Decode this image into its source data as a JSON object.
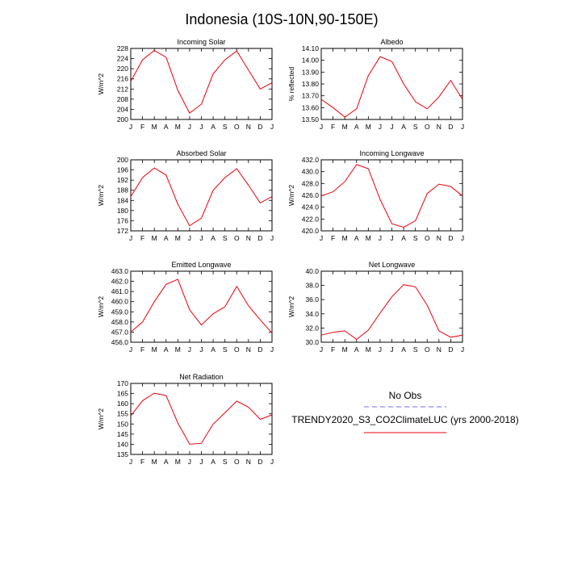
{
  "figure": {
    "title": "Indonesia (10S-10N,90-150E)"
  },
  "legend": {
    "obs_label": "No Obs",
    "obs_color": "#6b6bff",
    "model_label": "TRENDY2020_S3_CO2ClimateLUC (yrs 2000-2018)",
    "model_color": "#e8000b"
  },
  "chart_data": [
    {
      "type": "line",
      "title": "Incoming Solar",
      "ylabel": "W/m^2",
      "categories": [
        "J",
        "F",
        "M",
        "A",
        "M",
        "J",
        "J",
        "A",
        "S",
        "O",
        "N",
        "D",
        "J"
      ],
      "ylim": [
        200,
        228
      ],
      "yticks": [
        "200",
        "204",
        "208",
        "212",
        "216",
        "220",
        "224",
        "228"
      ],
      "series": [
        {
          "values": [
            215.0,
            223.5,
            227.2,
            224.5,
            211.5,
            202.5,
            206.0,
            218.0,
            223.5,
            227.0,
            219.5,
            212.0,
            214.5
          ]
        }
      ]
    },
    {
      "type": "line",
      "title": "Albedo",
      "ylabel": "% reflected",
      "categories": [
        "J",
        "F",
        "M",
        "A",
        "M",
        "J",
        "J",
        "A",
        "S",
        "O",
        "N",
        "D",
        "J"
      ],
      "ylim": [
        13.5,
        14.1
      ],
      "yticks": [
        "13.50",
        "13.60",
        "13.70",
        "13.80",
        "13.90",
        "14.00",
        "14.10"
      ],
      "series": [
        {
          "values": [
            13.67,
            13.6,
            13.52,
            13.59,
            13.87,
            14.03,
            13.99,
            13.8,
            13.65,
            13.59,
            13.69,
            13.83,
            13.67
          ]
        }
      ]
    },
    {
      "type": "line",
      "title": "Absorbed Solar",
      "ylabel": "W/m^2",
      "categories": [
        "J",
        "F",
        "M",
        "A",
        "M",
        "J",
        "J",
        "A",
        "S",
        "O",
        "N",
        "D",
        "J"
      ],
      "ylim": [
        172,
        200
      ],
      "yticks": [
        "172",
        "176",
        "180",
        "184",
        "188",
        "192",
        "196",
        "200"
      ],
      "series": [
        {
          "values": [
            185.5,
            193.0,
            196.8,
            194.0,
            182.5,
            174.0,
            177.0,
            188.0,
            193.0,
            196.5,
            190.0,
            183.0,
            185.5
          ]
        }
      ]
    },
    {
      "type": "line",
      "title": "Incoming Longwave",
      "ylabel": "W/m^2",
      "categories": [
        "J",
        "F",
        "M",
        "A",
        "M",
        "J",
        "J",
        "A",
        "S",
        "O",
        "N",
        "D",
        "J"
      ],
      "ylim": [
        420,
        432
      ],
      "yticks": [
        "420.0",
        "422.0",
        "424.0",
        "426.0",
        "428.0",
        "430.0",
        "432.0"
      ],
      "series": [
        {
          "values": [
            425.9,
            426.6,
            428.3,
            431.2,
            430.5,
            425.3,
            421.2,
            420.6,
            421.7,
            426.3,
            427.9,
            427.5,
            425.9
          ]
        }
      ]
    },
    {
      "type": "line",
      "title": "Emitted Longwave",
      "ylabel": "W/m^2",
      "categories": [
        "J",
        "F",
        "M",
        "A",
        "M",
        "J",
        "J",
        "A",
        "S",
        "O",
        "N",
        "D",
        "J"
      ],
      "ylim": [
        456,
        463
      ],
      "yticks": [
        "456.0",
        "457.0",
        "458.0",
        "459.0",
        "460.0",
        "461.0",
        "462.0",
        "463.0"
      ],
      "series": [
        {
          "values": [
            457.0,
            458.0,
            460.0,
            461.7,
            462.2,
            459.2,
            457.7,
            458.8,
            459.5,
            461.5,
            459.6,
            458.2,
            456.9
          ]
        }
      ]
    },
    {
      "type": "line",
      "title": "Net Longwave",
      "ylabel": "W/m^2",
      "categories": [
        "J",
        "F",
        "M",
        "A",
        "M",
        "J",
        "J",
        "A",
        "S",
        "O",
        "N",
        "D",
        "J"
      ],
      "ylim": [
        30,
        40
      ],
      "yticks": [
        "30.0",
        "32.0",
        "34.0",
        "36.0",
        "38.0",
        "40.0"
      ],
      "series": [
        {
          "values": [
            31.0,
            31.4,
            31.6,
            30.4,
            31.7,
            34.1,
            36.4,
            38.1,
            37.8,
            35.2,
            31.6,
            30.7,
            31.0
          ]
        }
      ]
    },
    {
      "type": "line",
      "title": "Net Radiation",
      "ylabel": "W/m^2",
      "categories": [
        "J",
        "F",
        "M",
        "A",
        "M",
        "J",
        "J",
        "A",
        "S",
        "O",
        "N",
        "D",
        "J"
      ],
      "ylim": [
        135,
        170
      ],
      "yticks": [
        "135",
        "140",
        "145",
        "150",
        "155",
        "160",
        "165",
        "170"
      ],
      "series": [
        {
          "values": [
            154.0,
            161.5,
            165.2,
            164.0,
            150.5,
            140.0,
            140.5,
            150.0,
            155.5,
            161.3,
            158.3,
            152.3,
            154.5
          ]
        }
      ]
    }
  ]
}
